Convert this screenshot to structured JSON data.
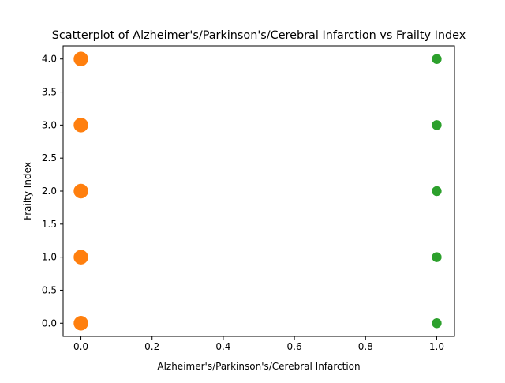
{
  "chart_data": {
    "type": "scatter",
    "title": "Scatterplot of Alzheimer's/Parkinson's/Cerebral Infarction vs Frailty Index",
    "xlabel": "Alzheimer's/Parkinson's/Cerebral Infarction",
    "ylabel": "Frailty Index",
    "xlim": [
      -0.05,
      1.05
    ],
    "ylim": [
      -0.2,
      4.2
    ],
    "xticks": [
      0.0,
      0.2,
      0.4,
      0.6,
      0.8,
      1.0
    ],
    "xtick_labels": [
      "0.0",
      "0.2",
      "0.4",
      "0.6",
      "0.8",
      "1.0"
    ],
    "yticks": [
      0.0,
      0.5,
      1.0,
      1.5,
      2.0,
      2.5,
      3.0,
      3.5,
      4.0
    ],
    "ytick_labels": [
      "0.0",
      "0.5",
      "1.0",
      "1.5",
      "2.0",
      "2.5",
      "3.0",
      "3.5",
      "4.0"
    ],
    "grid": false,
    "series": [
      {
        "color": "#ff7f0e",
        "marker": "large-circle",
        "points": [
          [
            0,
            0
          ],
          [
            0,
            1
          ],
          [
            0,
            2
          ],
          [
            0,
            3
          ],
          [
            0,
            4
          ]
        ]
      },
      {
        "color": "#2ca02c",
        "marker": "small-circle",
        "points": [
          [
            1,
            0
          ],
          [
            1,
            1
          ],
          [
            1,
            2
          ],
          [
            1,
            3
          ],
          [
            1,
            4
          ]
        ]
      }
    ]
  }
}
